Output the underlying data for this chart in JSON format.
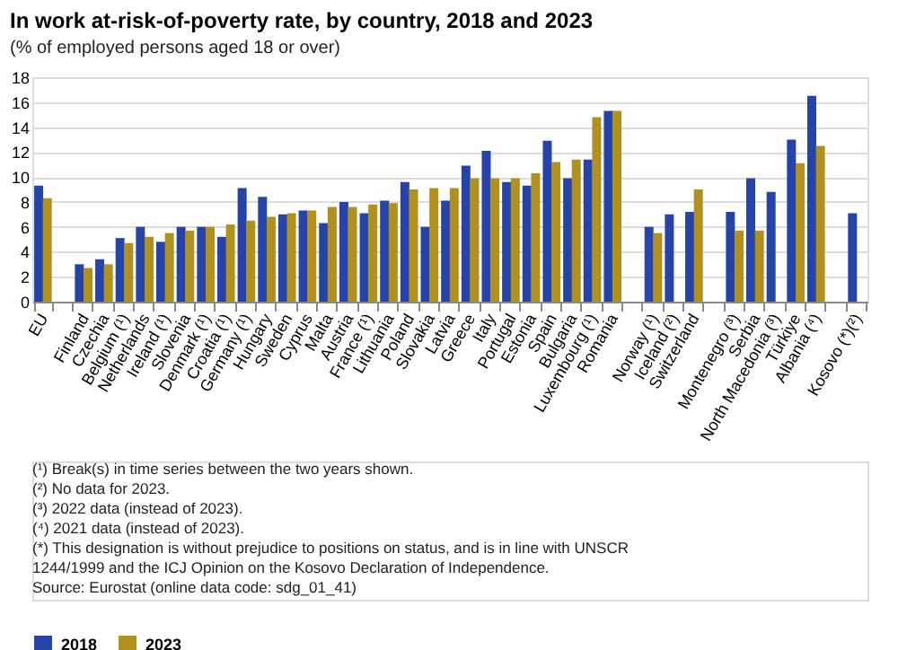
{
  "chart_data": {
    "type": "bar",
    "title": "In work at-risk-of-poverty rate, by country, 2018 and 2023",
    "subtitle": "(% of employed persons aged 18 or over)",
    "categories": [
      "EU",
      null,
      "Finland",
      "Czechia",
      "Belgium (¹)",
      "Netherlands",
      "Ireland (¹)",
      "Slovenia",
      "Denmark (¹)",
      "Croatia (¹)",
      "Germany (¹)",
      "Hungary",
      "Sweden",
      "Cyprus",
      "Malta",
      "Austria",
      "France (¹)",
      "Lithuania",
      "Poland",
      "Slovakia",
      "Latvia",
      "Greece",
      "Italy",
      "Portugal",
      "Estonia",
      "Spain",
      "Bulgaria",
      "Luxembourg (¹)",
      "Romania",
      null,
      "Norway (¹)",
      "Iceland (²)",
      "Switzerland",
      null,
      "Montenegro (³)",
      "Serbia",
      "North Macedonia (³)",
      "Türkiye",
      "Albania (⁴)",
      null,
      "Kosovo (*)(²)"
    ],
    "series": [
      {
        "name": "2018",
        "color": "#2644a7",
        "values": [
          9.3,
          null,
          3.0,
          3.4,
          5.1,
          6.0,
          4.8,
          6.0,
          6.0,
          5.2,
          9.1,
          8.4,
          7.0,
          7.3,
          6.3,
          8.0,
          7.1,
          8.1,
          9.6,
          6.0,
          8.1,
          10.9,
          12.1,
          9.6,
          9.3,
          12.9,
          9.9,
          11.4,
          15.3,
          null,
          6.0,
          7.0,
          7.2,
          null,
          7.2,
          9.9,
          8.8,
          13.0,
          16.5,
          null,
          7.1
        ]
      },
      {
        "name": "2023",
        "color": "#b09120",
        "values": [
          8.3,
          null,
          2.7,
          3.0,
          4.7,
          5.2,
          5.5,
          5.7,
          6.0,
          6.2,
          6.5,
          6.8,
          7.1,
          7.3,
          7.6,
          7.6,
          7.8,
          7.9,
          9.0,
          9.1,
          9.1,
          9.9,
          9.9,
          9.9,
          10.3,
          11.2,
          11.4,
          14.8,
          15.3,
          null,
          5.5,
          null,
          9.0,
          null,
          5.7,
          5.7,
          null,
          11.1,
          12.5,
          null,
          null
        ]
      }
    ],
    "ylim": [
      0,
      18
    ],
    "yticks": [
      0,
      2,
      4,
      6,
      8,
      10,
      12,
      14,
      16,
      18
    ],
    "grid": "y",
    "legend": "bottom",
    "annotations": [
      "(¹) Break(s) in time series between the two years shown.",
      "(²) No data for 2023.",
      "(³) 2022 data (instead of 2023).",
      "(⁴) 2021 data (instead of 2023).",
      "(*) This designation is without prejudice to positions on status, and is in line with UNSCR 1244/1999 and the ICJ Opinion on the Kosovo Declaration of Independence.",
      "Source: Eurostat (online data code: sdg_01_41)"
    ]
  }
}
